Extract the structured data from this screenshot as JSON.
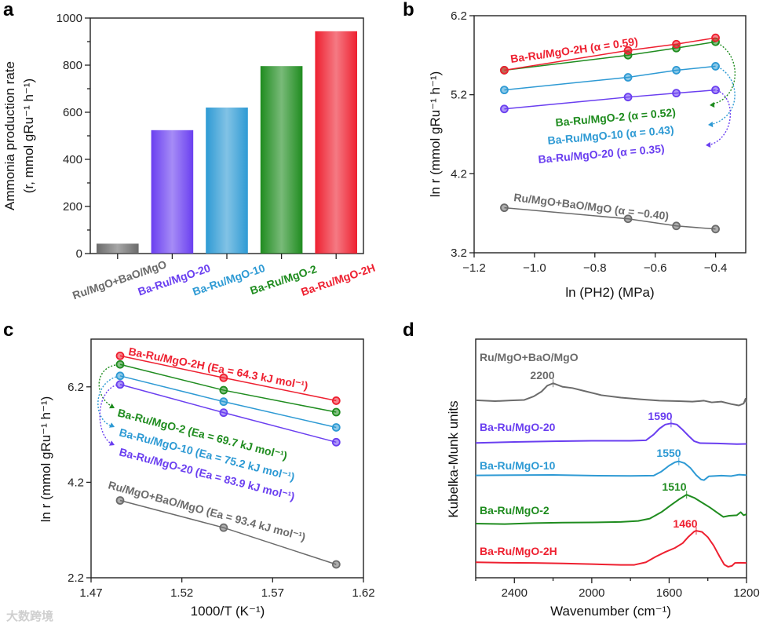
{
  "panel_letters": [
    "a",
    "b",
    "c",
    "d"
  ],
  "watermark": "大数跨境",
  "colors": {
    "gray": "#6b6b6b",
    "purple": "#6a3ff0",
    "blue": "#2e9ad4",
    "green": "#1f8c1f",
    "red": "#ee2030"
  },
  "chart_data": [
    {
      "type": "bar",
      "panel": "a",
      "categories": [
        "Ru/MgO+BaO/MgO",
        "Ba-Ru/MgO-20",
        "Ba-Ru/MgO-10",
        "Ba-Ru/MgO-2",
        "Ba-Ru/MgO-2H"
      ],
      "values": [
        42,
        524,
        620,
        796,
        944
      ],
      "series_colors": [
        "gray",
        "purple",
        "blue",
        "green",
        "red"
      ],
      "ylabel_line1": "Ammonia production rate",
      "ylabel_line2": "(r, mmol gRu⁻¹ h⁻¹)",
      "ylim": [
        0,
        1000
      ],
      "yticks": [
        "0",
        "200",
        "400",
        "600",
        "800",
        "1000"
      ]
    },
    {
      "type": "line",
      "panel": "b",
      "xlabel": "ln (PH2) (MPa)",
      "ylabel": "ln r (mmol gRu⁻¹ h⁻¹)",
      "xlim": [
        -1.2,
        -0.3
      ],
      "ylim": [
        3.2,
        6.2
      ],
      "xticks": [
        "−1.2",
        "−1.0",
        "−0.8",
        "−0.6",
        "−0.4"
      ],
      "yticks": [
        "3.2",
        "4.2",
        "5.2",
        "6.2"
      ],
      "x": [
        -1.1,
        -0.69,
        -0.53,
        -0.4
      ],
      "series": [
        {
          "name": "Ba-Ru/MgO-2H",
          "label": "Ba-Ru/MgO-2H (α = 0.59)",
          "color": "red",
          "values": [
            5.51,
            5.76,
            5.84,
            5.92
          ]
        },
        {
          "name": "Ba-Ru/MgO-2",
          "label": "Ba-Ru/MgO-2 (α = 0.52)",
          "color": "green",
          "values": [
            5.51,
            5.7,
            5.79,
            5.87
          ]
        },
        {
          "name": "Ba-Ru/MgO-10",
          "label": "Ba-Ru/MgO-10 (α = 0.43)",
          "color": "blue",
          "values": [
            5.26,
            5.42,
            5.51,
            5.56
          ]
        },
        {
          "name": "Ba-Ru/MgO-20",
          "label": "Ba-Ru/MgO-20 (α = 0.35)",
          "color": "purple",
          "values": [
            5.02,
            5.17,
            5.22,
            5.26
          ]
        },
        {
          "name": "Ru/MgO+BaO/MgO",
          "label": "Ru/MgO+BaO/MgO (α = −0.40)",
          "color": "gray",
          "values": [
            3.77,
            3.63,
            3.54,
            3.5
          ]
        }
      ]
    },
    {
      "type": "line",
      "panel": "c",
      "xlabel": "1000/T (K⁻¹)",
      "ylabel": "ln r (mmol gRu⁻¹ h⁻¹)",
      "xlim": [
        1.47,
        1.62
      ],
      "ylim": [
        2.2,
        7.2
      ],
      "xticks": [
        "1.47",
        "1.52",
        "1.57",
        "1.62"
      ],
      "yticks": [
        "2.2",
        "4.2",
        "6.2"
      ],
      "x": [
        1.486,
        1.543,
        1.605
      ],
      "series": [
        {
          "name": "Ba-Ru/MgO-2H",
          "label": "Ba-Ru/MgO-2H (Ea = 64.3 kJ mol⁻¹)",
          "color": "red",
          "values": [
            6.85,
            6.39,
            5.91
          ]
        },
        {
          "name": "Ba-Ru/MgO-2",
          "label": "Ba-Ru/MgO-2 (Ea = 69.7 kJ mol⁻¹)",
          "color": "green",
          "values": [
            6.67,
            6.13,
            5.67
          ]
        },
        {
          "name": "Ba-Ru/MgO-10",
          "label": "Ba-Ru/MgO-10 (Ea = 75.2 kJ mol⁻¹)",
          "color": "blue",
          "values": [
            6.43,
            5.89,
            5.35
          ]
        },
        {
          "name": "Ba-Ru/MgO-20",
          "label": "Ba-Ru/MgO-20 (Ea = 83.9 kJ mol⁻¹)",
          "color": "purple",
          "values": [
            6.25,
            5.66,
            5.04
          ]
        },
        {
          "name": "Ru/MgO+BaO/MgO",
          "label": "Ru/MgO+BaO/MgO (Ea = 93.4 kJ mol⁻¹)",
          "color": "gray",
          "values": [
            3.82,
            3.25,
            2.48
          ]
        }
      ]
    },
    {
      "type": "line",
      "panel": "d",
      "xlabel": "Wavenumber (cm⁻¹)",
      "ylabel": "Kubelka-Munk units",
      "xlim": [
        2600,
        1200
      ],
      "ylim": [
        0,
        10
      ],
      "xticks": [
        "2400",
        "2000",
        "1600",
        "1200"
      ],
      "series": [
        {
          "name": "Ru/MgO+BaO/MgO",
          "color": "gray",
          "peak": "2200",
          "peak_x": 2200,
          "points": [
            [
              2600,
              7.44
            ],
            [
              2500,
              7.4
            ],
            [
              2420,
              7.43
            ],
            [
              2350,
              7.45
            ],
            [
              2300,
              7.6
            ],
            [
              2260,
              7.8
            ],
            [
              2230,
              8.05
            ],
            [
              2200,
              8.15
            ],
            [
              2150,
              8.0
            ],
            [
              2100,
              7.95
            ],
            [
              2050,
              7.85
            ],
            [
              1950,
              7.65
            ],
            [
              1850,
              7.55
            ],
            [
              1750,
              7.48
            ],
            [
              1650,
              7.42
            ],
            [
              1550,
              7.4
            ],
            [
              1480,
              7.38
            ],
            [
              1420,
              7.42
            ],
            [
              1380,
              7.35
            ],
            [
              1330,
              7.38
            ],
            [
              1280,
              7.28
            ],
            [
              1240,
              7.22
            ],
            [
              1215,
              7.3
            ],
            [
              1205,
              7.5
            ],
            [
              1200,
              7.3
            ]
          ]
        },
        {
          "name": "Ba-Ru/MgO-20",
          "color": "purple",
          "peak": "1590",
          "peak_x": 1590,
          "points": [
            [
              2600,
              5.65
            ],
            [
              2400,
              5.69
            ],
            [
              2200,
              5.72
            ],
            [
              2000,
              5.74
            ],
            [
              1800,
              5.74
            ],
            [
              1720,
              5.76
            ],
            [
              1680,
              6.0
            ],
            [
              1650,
              6.25
            ],
            [
              1620,
              6.42
            ],
            [
              1590,
              6.47
            ],
            [
              1560,
              6.42
            ],
            [
              1530,
              6.2
            ],
            [
              1500,
              5.95
            ],
            [
              1470,
              5.72
            ],
            [
              1440,
              5.64
            ],
            [
              1350,
              5.63
            ],
            [
              1250,
              5.6
            ],
            [
              1200,
              5.61
            ]
          ]
        },
        {
          "name": "Ba-Ru/MgO-10",
          "color": "blue",
          "peak": "1550",
          "peak_x": 1550,
          "points": [
            [
              2600,
              4.29
            ],
            [
              2400,
              4.3
            ],
            [
              2200,
              4.31
            ],
            [
              2000,
              4.28
            ],
            [
              1800,
              4.27
            ],
            [
              1680,
              4.28
            ],
            [
              1640,
              4.45
            ],
            [
              1600,
              4.7
            ],
            [
              1570,
              4.84
            ],
            [
              1550,
              4.88
            ],
            [
              1520,
              4.8
            ],
            [
              1490,
              4.6
            ],
            [
              1460,
              4.3
            ],
            [
              1435,
              4.12
            ],
            [
              1420,
              4.09
            ],
            [
              1395,
              4.25
            ],
            [
              1330,
              4.28
            ],
            [
              1280,
              4.26
            ],
            [
              1240,
              4.32
            ],
            [
              1200,
              4.3
            ]
          ]
        },
        {
          "name": "Ba-Ru/MgO-2",
          "color": "green",
          "peak": "1510",
          "peak_x": 1510,
          "points": [
            [
              2600,
              2.27
            ],
            [
              2450,
              2.25
            ],
            [
              2300,
              2.29
            ],
            [
              2150,
              2.31
            ],
            [
              2000,
              2.32
            ],
            [
              1850,
              2.34
            ],
            [
              1760,
              2.38
            ],
            [
              1700,
              2.48
            ],
            [
              1640,
              2.75
            ],
            [
              1590,
              3.05
            ],
            [
              1550,
              3.28
            ],
            [
              1510,
              3.48
            ],
            [
              1470,
              3.35
            ],
            [
              1430,
              3.15
            ],
            [
              1390,
              2.95
            ],
            [
              1350,
              2.72
            ],
            [
              1320,
              2.55
            ],
            [
              1290,
              2.6
            ],
            [
              1250,
              2.62
            ],
            [
              1230,
              2.75
            ],
            [
              1215,
              2.62
            ],
            [
              1200,
              2.66
            ]
          ]
        },
        {
          "name": "Ba-Ru/MgO-2H",
          "color": "red",
          "peak": "1460",
          "peak_x": 1460,
          "points": [
            [
              2600,
              0.65
            ],
            [
              2450,
              0.63
            ],
            [
              2300,
              0.62
            ],
            [
              2150,
              0.6
            ],
            [
              2000,
              0.57
            ],
            [
              1850,
              0.54
            ],
            [
              1780,
              0.54
            ],
            [
              1720,
              0.65
            ],
            [
              1670,
              0.88
            ],
            [
              1620,
              1.08
            ],
            [
              1570,
              1.25
            ],
            [
              1530,
              1.45
            ],
            [
              1500,
              1.72
            ],
            [
              1470,
              1.94
            ],
            [
              1460,
              1.97
            ],
            [
              1430,
              1.92
            ],
            [
              1400,
              1.7
            ],
            [
              1370,
              1.35
            ],
            [
              1340,
              0.9
            ],
            [
              1315,
              0.55
            ],
            [
              1295,
              0.46
            ],
            [
              1275,
              0.5
            ],
            [
              1260,
              0.62
            ],
            [
              1230,
              0.63
            ],
            [
              1200,
              0.62
            ]
          ]
        }
      ]
    }
  ]
}
